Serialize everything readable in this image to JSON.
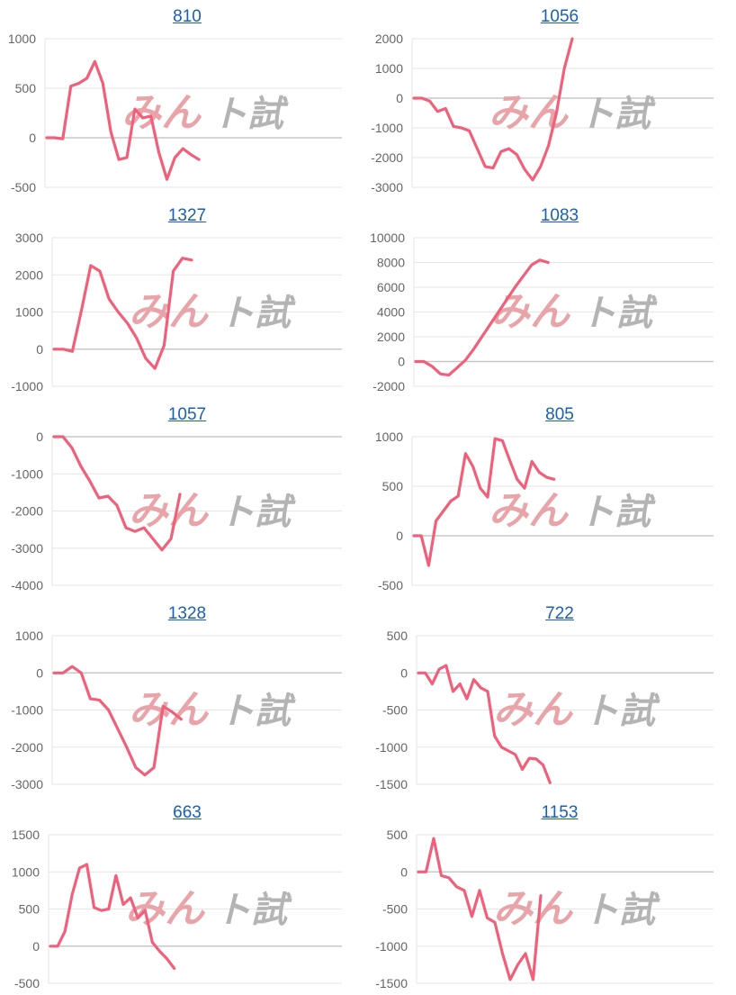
{
  "colors": {
    "line": "#f0607a",
    "grid": "#e6e6e6",
    "zero": "#c8c8c8",
    "title": "#1a5fb4",
    "wm_red": "#e8a4a8",
    "wm_gray": "#b4b4b4"
  },
  "watermark": {
    "part1": "みん",
    "part2": "ト試"
  },
  "chart_data": [
    {
      "type": "line",
      "title": "810",
      "yticks": [
        1000,
        500,
        0,
        -500
      ],
      "ylim": [
        -500,
        1000
      ],
      "y": [
        0,
        0,
        -10,
        520,
        550,
        600,
        770,
        550,
        60,
        -220,
        -200,
        290,
        200,
        220,
        -150,
        -420,
        -200,
        -110,
        -170,
        -220
      ]
    },
    {
      "type": "line",
      "title": "1056",
      "yticks": [
        2000,
        1000,
        0,
        -1000,
        -2000,
        -3000
      ],
      "ylim": [
        -3000,
        2000
      ],
      "y": [
        0,
        0,
        -100,
        -450,
        -350,
        -950,
        -1000,
        -1100,
        -1700,
        -2300,
        -2350,
        -1800,
        -1700,
        -1900,
        -2400,
        -2750,
        -2300,
        -1600,
        -500,
        1000,
        2000
      ]
    },
    {
      "type": "line",
      "title": "1327",
      "yticks": [
        3000,
        2000,
        1000,
        0,
        -1000
      ],
      "ylim": [
        -1000,
        3000
      ],
      "y": [
        0,
        0,
        -60,
        1050,
        2250,
        2100,
        1350,
        1000,
        700,
        300,
        -250,
        -520,
        100,
        2100,
        2450,
        2400
      ]
    },
    {
      "type": "line",
      "title": "1083",
      "yticks": [
        10000,
        8000,
        6000,
        4000,
        2000,
        0,
        -2000
      ],
      "ylim": [
        -2000,
        10000
      ],
      "y": [
        0,
        0,
        -400,
        -1000,
        -1100,
        -500,
        100,
        1000,
        2000,
        3000,
        4000,
        5000,
        6000,
        6900,
        7800,
        8200,
        8000
      ]
    },
    {
      "type": "line",
      "title": "1057",
      "yticks": [
        0,
        -1000,
        -2000,
        -3000,
        -4000
      ],
      "ylim": [
        -4000,
        0
      ],
      "y": [
        0,
        0,
        -300,
        -800,
        -1200,
        -1650,
        -1600,
        -1850,
        -2450,
        -2550,
        -2450,
        -2750,
        -3050,
        -2750,
        -1550
      ]
    },
    {
      "type": "line",
      "title": "805",
      "yticks": [
        1000,
        500,
        0,
        -500
      ],
      "ylim": [
        -500,
        1000
      ],
      "y": [
        0,
        0,
        -300,
        150,
        250,
        350,
        400,
        830,
        700,
        480,
        390,
        980,
        960,
        760,
        570,
        480,
        750,
        640,
        590,
        570
      ]
    },
    {
      "type": "line",
      "title": "1328",
      "yticks": [
        1000,
        0,
        -1000,
        -2000,
        -3000
      ],
      "ylim": [
        -3000,
        1000
      ],
      "y": [
        0,
        0,
        170,
        0,
        -700,
        -730,
        -1000,
        -1500,
        -2000,
        -2550,
        -2750,
        -2550,
        -900,
        -1050,
        -1250
      ]
    },
    {
      "type": "line",
      "title": "722",
      "yticks": [
        500,
        0,
        -500,
        -1000,
        -1500
      ],
      "ylim": [
        -1500,
        500
      ],
      "y": [
        0,
        0,
        -150,
        50,
        100,
        -250,
        -150,
        -350,
        -90,
        -200,
        -250,
        -850,
        -1000,
        -1050,
        -1100,
        -1300,
        -1150,
        -1160,
        -1240,
        -1480
      ]
    },
    {
      "type": "line",
      "title": "663",
      "yticks": [
        1500,
        1000,
        500,
        0,
        -500
      ],
      "ylim": [
        -500,
        1500
      ],
      "y": [
        0,
        0,
        200,
        700,
        1050,
        1100,
        520,
        480,
        500,
        950,
        560,
        650,
        380,
        480,
        50,
        -70,
        -170,
        -300
      ]
    },
    {
      "type": "line",
      "title": "1153",
      "yticks": [
        500,
        0,
        -500,
        -1000,
        -1500
      ],
      "ylim": [
        -1500,
        500
      ],
      "y": [
        0,
        0,
        450,
        -50,
        -80,
        -200,
        -250,
        -600,
        -250,
        -620,
        -680,
        -1100,
        -1450,
        -1250,
        -1100,
        -1450,
        -320
      ]
    }
  ]
}
